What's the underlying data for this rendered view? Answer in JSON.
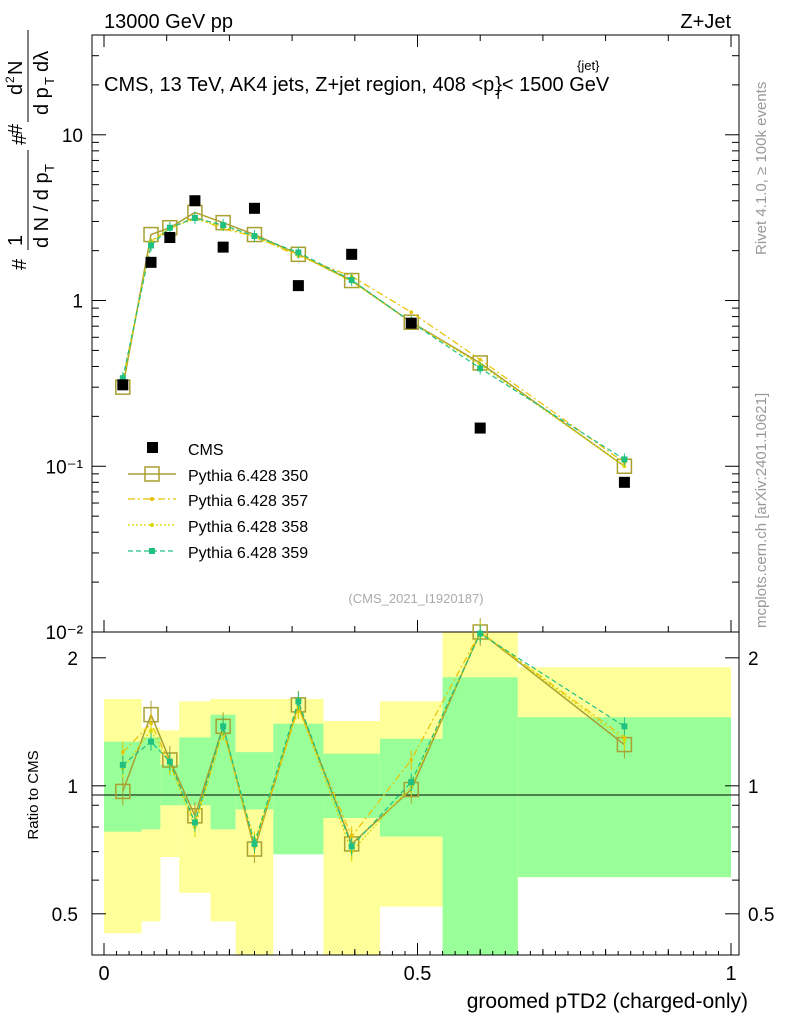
{
  "header": {
    "left": "13000 GeV pp",
    "right": "Z+Jet",
    "region": "CMS, 13 TeV, AK4 jets, Z+jet region, 408 <",
    "region_p": "p",
    "region_sub": "T",
    "region_sup": "{jet}",
    "region_tail": "}< 1500 GeV",
    "analysis_id": "(CMS_2021_I1920187)"
  },
  "side_labels": {
    "rivet": "Rivet 4.1.0, ≥ 100k events",
    "mcplots": "mcplots.cern.ch [arXiv:2401.10621]"
  },
  "axes": {
    "ylabel_top": "1/N dN/dpT d2N/dpT dlambda",
    "ylabel_bottom": "Ratio to CMS",
    "xlabel": "groomed pTD2 (charged-only)",
    "x_ticks": [
      "0",
      "0.5",
      "1"
    ],
    "y_ticks_top": [
      "10⁻²",
      "10⁻¹",
      "1",
      "10"
    ],
    "y_ticks_ratio": [
      "0.5",
      "1",
      "2"
    ]
  },
  "legend": {
    "cms": "CMS",
    "p350": "Pythia 6.428 350",
    "p357": "Pythia 6.428 357",
    "p358": "Pythia 6.428 358",
    "p359": "Pythia 6.428 359"
  },
  "colors": {
    "cms": "#000000",
    "p350": "#a8a030",
    "p357": "#e8c000",
    "p358": "#d8d800",
    "p359": "#20c080",
    "band_inner": "#99ff99",
    "band_outer": "#ffff99"
  },
  "chart_data": {
    "type": "scatter",
    "x_scale": "linear",
    "y_scale_top": "log",
    "y_scale_ratio": "log",
    "xlim": [
      0,
      1
    ],
    "ylim_top": [
      0.01,
      40
    ],
    "ylim_ratio": [
      0.4,
      2.3
    ],
    "bin_edges": [
      0.0,
      0.06,
      0.09,
      0.12,
      0.17,
      0.21,
      0.27,
      0.35,
      0.44,
      0.54,
      0.66,
      1.0
    ],
    "x": [
      0.03,
      0.075,
      0.105,
      0.145,
      0.19,
      0.24,
      0.31,
      0.395,
      0.49,
      0.6,
      0.83
    ],
    "series": [
      {
        "name": "CMS",
        "values": [
          0.31,
          1.7,
          2.4,
          4.0,
          2.1,
          3.6,
          1.23,
          1.9,
          0.73,
          0.17,
          0.08
        ]
      },
      {
        "name": "Pythia 6.428 350",
        "values": [
          0.3,
          2.5,
          2.75,
          3.4,
          2.95,
          2.5,
          1.9,
          1.32,
          0.74,
          0.42,
          0.1
        ],
        "ratio": [
          0.97,
          1.47,
          1.15,
          0.85,
          1.38,
          0.71,
          1.55,
          0.73,
          0.98,
          2.45,
          1.25
        ]
      },
      {
        "name": "Pythia 6.428 357",
        "values": [
          0.33,
          2.3,
          2.7,
          3.2,
          2.7,
          2.45,
          1.85,
          1.4,
          0.85,
          0.44,
          0.105
        ],
        "ratio": [
          1.2,
          1.4,
          1.13,
          0.82,
          1.35,
          0.72,
          1.52,
          0.76,
          1.15,
          2.4,
          1.3
        ]
      },
      {
        "name": "Pythia 6.428 358",
        "values": [
          0.32,
          2.25,
          2.75,
          3.1,
          2.8,
          2.4,
          1.9,
          1.3,
          0.74,
          0.41,
          0.1
        ],
        "ratio": [
          1.1,
          1.35,
          1.12,
          0.8,
          1.35,
          0.74,
          1.53,
          0.7,
          1.0,
          2.35,
          1.28
        ]
      },
      {
        "name": "Pythia 6.428 359",
        "values": [
          0.34,
          2.15,
          2.75,
          3.15,
          2.85,
          2.45,
          1.95,
          1.33,
          0.74,
          0.39,
          0.11
        ],
        "ratio": [
          1.12,
          1.27,
          1.14,
          0.82,
          1.38,
          0.73,
          1.58,
          0.72,
          1.02,
          2.28,
          1.38
        ]
      }
    ],
    "cms_band_inner": [
      [
        0.78,
        1.27
      ],
      [
        0.79,
        1.3
      ],
      [
        0.9,
        1.12
      ],
      [
        0.9,
        1.3
      ],
      [
        0.79,
        1.47
      ],
      [
        0.88,
        1.2
      ],
      [
        0.69,
        1.4
      ],
      [
        0.84,
        1.19
      ],
      [
        0.76,
        1.29
      ],
      [
        0.28,
        1.8
      ],
      [
        0.61,
        1.45
      ]
    ],
    "cms_band_outer": [
      [
        0.45,
        1.6
      ],
      [
        0.48,
        1.37
      ],
      [
        0.68,
        1.35
      ],
      [
        0.56,
        1.58
      ],
      [
        0.48,
        1.6
      ],
      [
        0.38,
        1.6
      ],
      [
        0.7,
        1.6
      ],
      [
        0.39,
        1.42
      ],
      [
        0.52,
        1.58
      ],
      [
        0.28,
        2.4
      ],
      [
        0.61,
        1.9
      ]
    ]
  }
}
